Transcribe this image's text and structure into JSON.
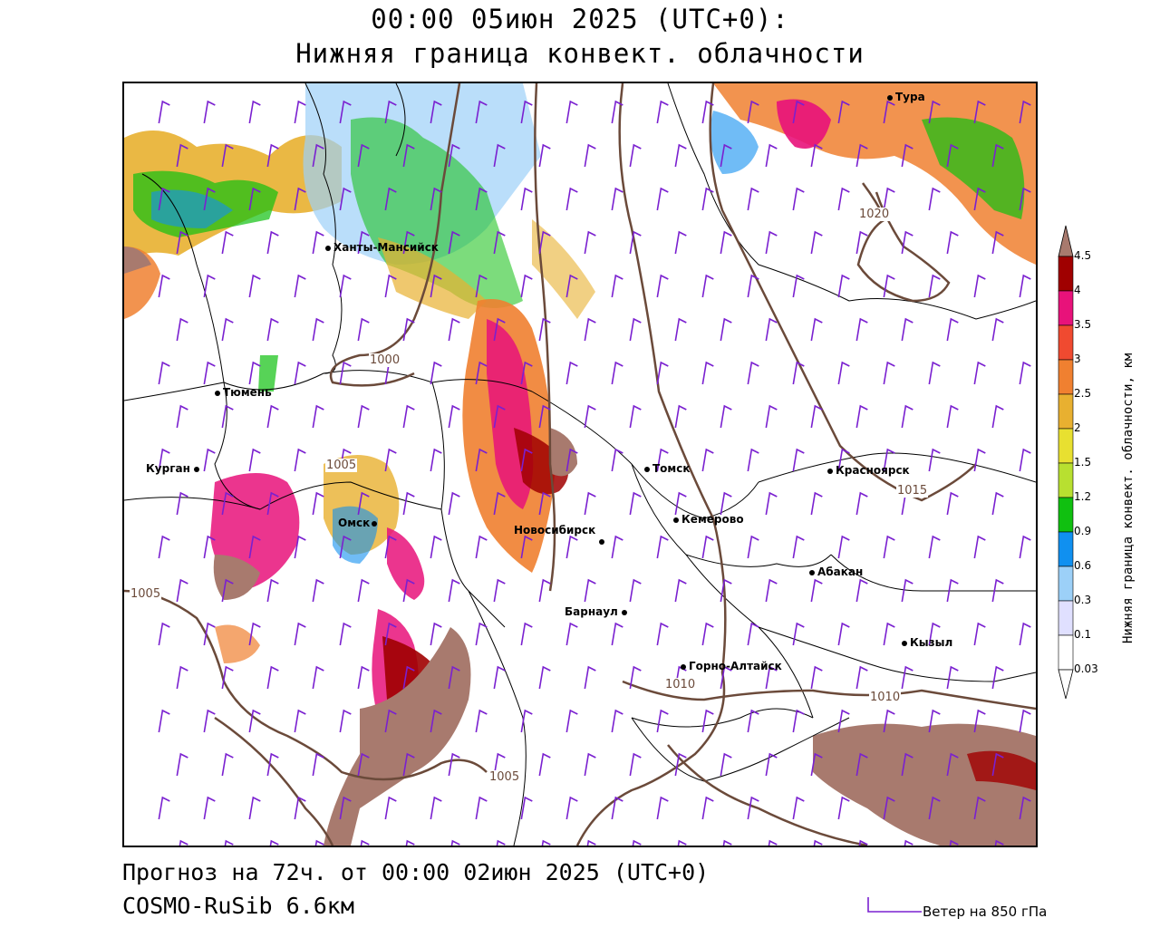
{
  "header": {
    "title_line1": "00:00 05июн 2025 (UTC+0):",
    "title_line2": "Нижняя граница конвект. облачности"
  },
  "footer": {
    "forecast": "Прогноз на 72ч. от 00:00 02июн 2025 (UTC+0)",
    "model": "COSMO-RuSib 6.6км",
    "wind_label": "Ветер на 850 гПа"
  },
  "legend": {
    "title": "Нижняя граница конвект. облачности, км",
    "ticks": [
      "4.5",
      "4",
      "3.5",
      "3",
      "2.5",
      "2",
      "1.5",
      "1.2",
      "0.9",
      "0.6",
      "0.3",
      "0.1",
      "0.03"
    ],
    "colors": [
      "#a87a6e",
      "#a00000",
      "#e8127a",
      "#f04a30",
      "#f08030",
      "#e8b030",
      "#e8e030",
      "#b8e030",
      "#10c010",
      "#1090f0",
      "#9cd0f8",
      "#e0e0ff",
      "#ffffff"
    ]
  },
  "cities": [
    {
      "name": "Тура"
    },
    {
      "name": "Ханты-Мансийск"
    },
    {
      "name": "Тюмень"
    },
    {
      "name": "Курган"
    },
    {
      "name": "Омск"
    },
    {
      "name": "Томск"
    },
    {
      "name": "Красноярск"
    },
    {
      "name": "Кемерово"
    },
    {
      "name": "Новосибирск"
    },
    {
      "name": "Абакан"
    },
    {
      "name": "Барнаул"
    },
    {
      "name": "Кызыл"
    },
    {
      "name": "Горно-Алтайск"
    }
  ],
  "isobars": [
    "1020",
    "1000",
    "1005",
    "1015",
    "1005",
    "1010",
    "1010",
    "1005"
  ]
}
